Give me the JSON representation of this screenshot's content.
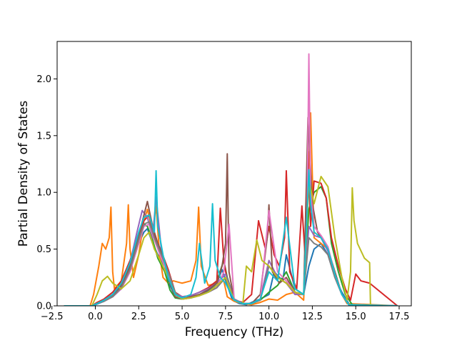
{
  "chart_data": {
    "type": "line",
    "title": "",
    "xlabel": "Frequency (THz)",
    "ylabel": "Partial Density of States",
    "xlim": [
      -2.2,
      18.2
    ],
    "ylim": [
      0.0,
      2.33
    ],
    "xticks": [
      -2.5,
      0.0,
      2.5,
      5.0,
      7.5,
      10.0,
      12.5,
      15.0,
      17.5
    ],
    "xtick_labels": [
      "−2.5",
      "0.0",
      "2.5",
      "5.0",
      "7.5",
      "10.0",
      "12.5",
      "15.0",
      "17.5"
    ],
    "yticks": [
      0.0,
      0.5,
      1.0,
      1.5,
      2.0
    ],
    "ytick_labels": [
      "0.0",
      "0.5",
      "1.0",
      "1.5",
      "2.0"
    ],
    "grid": false,
    "legend": "none",
    "series": [
      {
        "color": "#1f77b4",
        "x": [
          -1.8,
          -0.2,
          0.0,
          0.5,
          1.0,
          1.5,
          2.0,
          2.5,
          2.8,
          3.0,
          3.3,
          3.6,
          4.0,
          4.3,
          4.6,
          5.0,
          5.5,
          6.0,
          6.3,
          6.6,
          7.0,
          7.3,
          7.6,
          7.9,
          8.3,
          8.7,
          9.0,
          9.5,
          10.0,
          10.3,
          10.8,
          11.0,
          11.5,
          12.0,
          12.3,
          12.6,
          13.0,
          13.4,
          13.8,
          14.2,
          14.6,
          14.9,
          15.2,
          17.4
        ],
        "y": [
          0,
          0,
          0.01,
          0.04,
          0.08,
          0.15,
          0.32,
          0.55,
          0.65,
          0.68,
          0.55,
          0.45,
          0.35,
          0.18,
          0.08,
          0.06,
          0.07,
          0.1,
          0.12,
          0.14,
          0.2,
          0.32,
          0.18,
          0.05,
          0.02,
          0.01,
          0.03,
          0.06,
          0.1,
          0.3,
          0.22,
          0.45,
          0.15,
          0.1,
          0.35,
          0.5,
          0.55,
          0.45,
          0.25,
          0.12,
          0.02,
          0.0,
          0,
          0
        ]
      },
      {
        "color": "#ff7f0e",
        "x": [
          -1.8,
          -0.3,
          -0.1,
          0.2,
          0.4,
          0.6,
          0.8,
          0.9,
          1.0,
          1.1,
          1.5,
          1.8,
          1.9,
          2.0,
          2.2,
          2.5,
          2.8,
          3.0,
          3.3,
          3.5,
          3.7,
          3.9,
          4.2,
          4.5,
          5.0,
          5.5,
          5.8,
          5.95,
          6.1,
          6.5,
          7.0,
          7.4,
          7.6,
          8.0,
          8.5,
          9.0,
          9.5,
          10.0,
          10.5,
          11.0,
          11.5,
          12.0,
          12.2,
          12.4,
          12.6,
          13.0,
          13.4,
          13.8,
          14.2,
          14.5,
          17.4
        ],
        "y": [
          0,
          0,
          0.1,
          0.35,
          0.55,
          0.5,
          0.6,
          0.87,
          0.3,
          0.15,
          0.22,
          0.55,
          0.89,
          0.5,
          0.25,
          0.45,
          0.75,
          0.85,
          0.65,
          0.88,
          0.45,
          0.25,
          0.2,
          0.22,
          0.2,
          0.22,
          0.4,
          0.87,
          0.35,
          0.18,
          0.2,
          0.22,
          0.08,
          0.04,
          0.02,
          0.01,
          0.03,
          0.06,
          0.05,
          0.1,
          0.12,
          0.05,
          0.8,
          1.7,
          0.6,
          0.55,
          0.5,
          0.3,
          0.1,
          0.02,
          0
        ]
      },
      {
        "color": "#2ca02c",
        "x": [
          -1.8,
          -0.2,
          0.1,
          0.5,
          1.0,
          1.5,
          2.0,
          2.4,
          2.8,
          3.0,
          3.3,
          3.6,
          4.0,
          4.3,
          4.6,
          5.0,
          5.5,
          6.0,
          6.5,
          7.0,
          7.4,
          7.6,
          8.0,
          8.5,
          9.0,
          9.5,
          10.0,
          10.5,
          11.0,
          11.5,
          12.0,
          12.3,
          12.6,
          13.0,
          13.3,
          13.6,
          14.0,
          14.4,
          14.8,
          17.4
        ],
        "y": [
          0,
          0,
          0.02,
          0.05,
          0.1,
          0.18,
          0.35,
          0.6,
          0.72,
          0.7,
          0.58,
          0.42,
          0.3,
          0.14,
          0.07,
          0.06,
          0.08,
          0.1,
          0.14,
          0.22,
          0.4,
          0.25,
          0.06,
          0.02,
          0.02,
          0.05,
          0.12,
          0.18,
          0.3,
          0.12,
          0.1,
          0.85,
          1.0,
          1.05,
          0.95,
          0.55,
          0.3,
          0.1,
          0.01,
          0
        ]
      },
      {
        "color": "#d62728",
        "x": [
          -1.8,
          -0.2,
          0.1,
          0.5,
          1.0,
          1.5,
          2.0,
          2.5,
          2.8,
          3.1,
          3.4,
          3.8,
          4.2,
          4.6,
          5.0,
          5.5,
          6.0,
          6.5,
          7.0,
          7.2,
          7.4,
          7.6,
          8.0,
          8.5,
          9.0,
          9.4,
          9.8,
          10.0,
          10.3,
          10.6,
          10.9,
          11.0,
          11.2,
          11.6,
          11.9,
          12.1,
          12.25,
          12.4,
          12.6,
          13.0,
          13.3,
          13.6,
          14.0,
          14.4,
          14.7,
          15.0,
          15.3,
          15.8,
          17.4
        ],
        "y": [
          0,
          0,
          0.03,
          0.06,
          0.12,
          0.22,
          0.4,
          0.62,
          0.75,
          0.8,
          0.62,
          0.48,
          0.32,
          0.12,
          0.08,
          0.09,
          0.12,
          0.16,
          0.22,
          0.86,
          0.4,
          0.22,
          0.05,
          0.03,
          0.1,
          0.75,
          0.5,
          0.7,
          0.45,
          0.35,
          0.6,
          1.19,
          0.3,
          0.15,
          0.88,
          0.4,
          1.36,
          0.7,
          1.1,
          1.08,
          0.95,
          0.6,
          0.35,
          0.15,
          0.05,
          0.28,
          0.22,
          0.2,
          0
        ]
      },
      {
        "color": "#9467bd",
        "x": [
          -1.8,
          -0.2,
          0.1,
          0.5,
          1.0,
          1.5,
          2.0,
          2.4,
          2.7,
          3.0,
          3.3,
          3.5,
          3.8,
          4.1,
          4.5,
          5.0,
          5.5,
          6.0,
          6.5,
          7.0,
          7.5,
          8.0,
          8.5,
          9.0,
          9.5,
          10.0,
          10.5,
          11.0,
          11.5,
          12.0,
          12.3,
          12.6,
          13.0,
          13.4,
          13.8,
          14.2,
          14.6,
          17.4
        ],
        "y": [
          0,
          0,
          0.02,
          0.05,
          0.1,
          0.2,
          0.38,
          0.65,
          0.84,
          0.78,
          0.6,
          0.96,
          0.5,
          0.3,
          0.12,
          0.08,
          0.09,
          0.12,
          0.15,
          0.2,
          0.28,
          0.06,
          0.02,
          0.02,
          0.06,
          0.4,
          0.25,
          0.2,
          0.1,
          0.1,
          0.7,
          0.62,
          0.6,
          0.48,
          0.25,
          0.1,
          0.01,
          0
        ]
      },
      {
        "color": "#8c564b",
        "x": [
          -1.8,
          -0.2,
          0.1,
          0.5,
          1.0,
          1.5,
          2.0,
          2.5,
          2.8,
          3.0,
          3.3,
          3.6,
          4.0,
          4.3,
          4.6,
          5.0,
          5.5,
          6.0,
          6.5,
          7.0,
          7.3,
          7.5,
          7.6,
          7.7,
          8.0,
          8.5,
          9.0,
          9.5,
          9.9,
          10.0,
          10.2,
          10.6,
          11.0,
          11.5,
          12.0,
          12.25,
          12.5,
          12.8,
          13.0,
          13.4,
          13.8,
          14.2,
          14.6,
          17.4
        ],
        "y": [
          0,
          0,
          0.02,
          0.05,
          0.09,
          0.18,
          0.35,
          0.62,
          0.8,
          0.92,
          0.7,
          0.55,
          0.4,
          0.2,
          0.08,
          0.06,
          0.08,
          0.1,
          0.14,
          0.2,
          0.35,
          0.55,
          1.34,
          0.3,
          0.05,
          0.02,
          0.02,
          0.1,
          0.6,
          0.89,
          0.3,
          0.2,
          0.25,
          0.12,
          0.1,
          1.66,
          0.9,
          0.65,
          0.6,
          0.5,
          0.3,
          0.1,
          0.01,
          0
        ]
      },
      {
        "color": "#e377c2",
        "x": [
          -1.8,
          -0.2,
          0.1,
          0.5,
          1.0,
          1.5,
          2.0,
          2.5,
          2.8,
          3.1,
          3.4,
          3.8,
          4.2,
          4.6,
          5.0,
          5.5,
          6.0,
          6.5,
          7.0,
          7.4,
          7.7,
          8.0,
          8.5,
          9.0,
          9.5,
          10.0,
          10.5,
          11.0,
          11.5,
          12.0,
          12.2,
          12.3,
          12.4,
          12.6,
          13.0,
          13.4,
          13.8,
          14.2,
          14.6,
          17.4
        ],
        "y": [
          0,
          0,
          0.02,
          0.04,
          0.08,
          0.15,
          0.3,
          0.55,
          0.7,
          0.72,
          0.58,
          0.42,
          0.28,
          0.1,
          0.06,
          0.07,
          0.09,
          0.12,
          0.16,
          0.3,
          0.72,
          0.05,
          0.02,
          0.02,
          0.05,
          0.84,
          0.3,
          0.22,
          0.12,
          0.1,
          0.8,
          2.22,
          1.0,
          0.7,
          0.62,
          0.52,
          0.28,
          0.1,
          0.01,
          0
        ]
      },
      {
        "color": "#7f7f7f",
        "x": [
          -1.8,
          -0.2,
          0.1,
          0.5,
          1.0,
          1.5,
          2.0,
          2.5,
          2.8,
          3.1,
          3.4,
          3.8,
          4.2,
          4.6,
          5.0,
          5.5,
          6.0,
          6.5,
          7.0,
          7.5,
          8.0,
          8.5,
          9.0,
          9.5,
          10.0,
          10.5,
          11.0,
          11.5,
          12.0,
          12.3,
          12.6,
          13.0,
          13.4,
          13.8,
          14.2,
          14.6,
          17.4
        ],
        "y": [
          0,
          0,
          0.02,
          0.04,
          0.08,
          0.16,
          0.32,
          0.58,
          0.72,
          0.74,
          0.6,
          0.45,
          0.3,
          0.12,
          0.06,
          0.07,
          0.09,
          0.12,
          0.16,
          0.25,
          0.05,
          0.02,
          0.02,
          0.05,
          0.35,
          0.25,
          0.2,
          0.12,
          0.1,
          0.6,
          0.55,
          0.52,
          0.45,
          0.25,
          0.1,
          0.01,
          0
        ]
      },
      {
        "color": "#bcbd22",
        "x": [
          -1.8,
          -0.2,
          0.1,
          0.4,
          0.7,
          1.0,
          1.5,
          2.0,
          2.5,
          2.8,
          3.1,
          3.4,
          3.8,
          4.2,
          4.6,
          5.0,
          5.5,
          6.0,
          6.5,
          7.0,
          7.5,
          8.0,
          8.5,
          8.7,
          9.0,
          9.3,
          9.6,
          10.0,
          10.5,
          11.0,
          11.5,
          12.0,
          12.3,
          12.6,
          13.0,
          13.4,
          13.8,
          14.2,
          14.5,
          14.7,
          14.8,
          14.9,
          15.1,
          15.5,
          15.8,
          15.85,
          17.4
        ],
        "y": [
          0,
          0,
          0.1,
          0.22,
          0.26,
          0.2,
          0.15,
          0.22,
          0.45,
          0.6,
          0.65,
          0.5,
          0.38,
          0.25,
          0.1,
          0.06,
          0.07,
          0.09,
          0.12,
          0.18,
          0.25,
          0.05,
          0.02,
          0.35,
          0.3,
          0.58,
          0.4,
          0.35,
          0.25,
          0.2,
          0.12,
          0.1,
          1.1,
          0.9,
          1.14,
          1.05,
          0.6,
          0.25,
          0.05,
          0.3,
          1.04,
          0.75,
          0.55,
          0.42,
          0.38,
          0.0,
          0
        ]
      },
      {
        "color": "#17becf",
        "x": [
          -1.8,
          -0.2,
          0.1,
          0.5,
          1.0,
          1.5,
          2.0,
          2.5,
          2.8,
          3.1,
          3.4,
          3.5,
          3.6,
          3.9,
          4.2,
          4.6,
          5.0,
          5.5,
          5.8,
          6.0,
          6.3,
          6.6,
          6.75,
          6.9,
          7.2,
          7.5,
          8.0,
          8.5,
          9.0,
          9.5,
          10.0,
          10.5,
          11.0,
          11.5,
          12.0,
          12.3,
          12.4,
          12.6,
          13.0,
          13.4,
          13.8,
          14.2,
          14.6,
          17.4
        ],
        "y": [
          0,
          0,
          0.02,
          0.05,
          0.1,
          0.2,
          0.38,
          0.65,
          0.78,
          0.8,
          0.65,
          1.19,
          0.7,
          0.45,
          0.25,
          0.1,
          0.07,
          0.1,
          0.25,
          0.55,
          0.2,
          0.35,
          0.9,
          0.4,
          0.25,
          0.2,
          0.05,
          0.02,
          0.02,
          0.06,
          0.3,
          0.22,
          0.78,
          0.15,
          0.1,
          1.2,
          0.9,
          0.65,
          0.6,
          0.5,
          0.28,
          0.1,
          0.01,
          0
        ]
      }
    ]
  }
}
